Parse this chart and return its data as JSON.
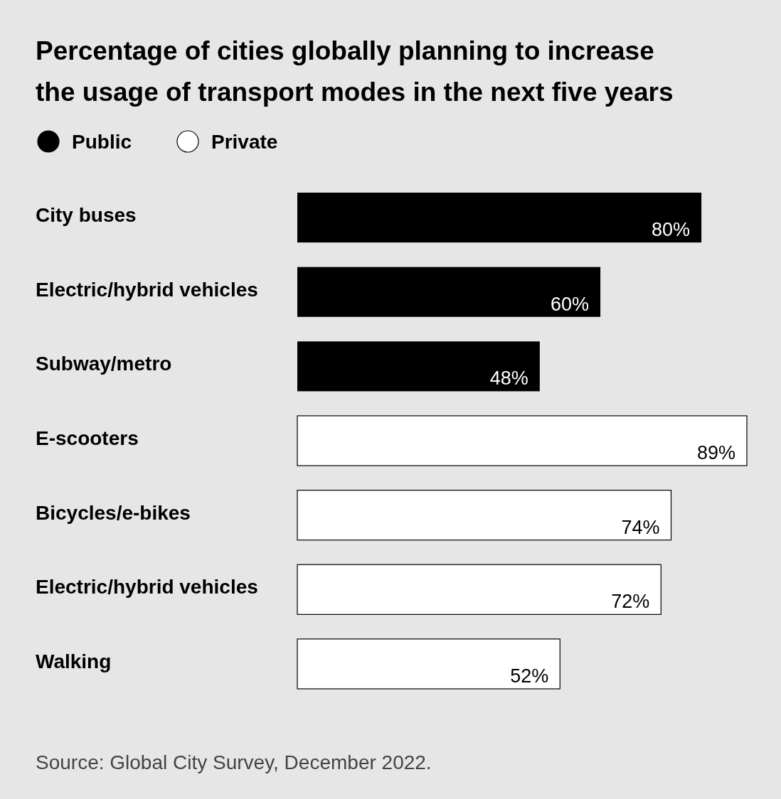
{
  "chart_data": {
    "type": "bar",
    "orientation": "horizontal",
    "title": "Percentage of cities globally planning to increase the usage of transport modes in the next five years",
    "categories": [
      "City buses",
      "Electric/hybrid vehicles",
      "Subway/metro",
      "E-scooters",
      "Bicycles/e-bikes",
      "Electric/hybrid vehicles",
      "Walking"
    ],
    "series": [
      {
        "name": "Public",
        "color": "#000000",
        "values": [
          80,
          60,
          48,
          null,
          null,
          null,
          null
        ],
        "value_labels": [
          "80%",
          "60%",
          "48%",
          null,
          null,
          null,
          null
        ]
      },
      {
        "name": "Private",
        "color": "#ffffff",
        "values": [
          null,
          null,
          null,
          89,
          74,
          72,
          52
        ],
        "value_labels": [
          null,
          null,
          null,
          "89%",
          "74%",
          "72%",
          "52%"
        ]
      }
    ],
    "legend": "top left",
    "annotations": [
      "Source: Global City Survey, December 2022."
    ]
  }
}
